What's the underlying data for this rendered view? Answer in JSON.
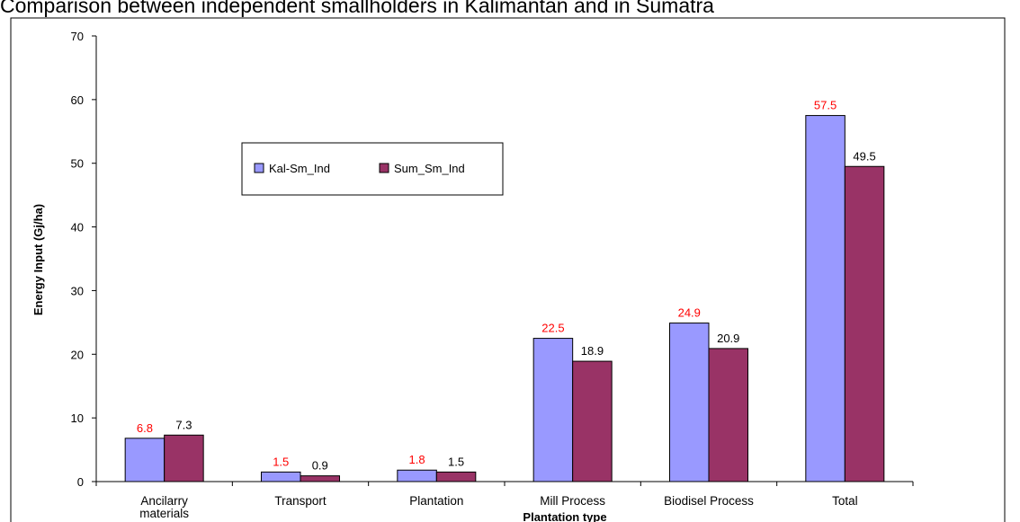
{
  "chart_data": {
    "type": "bar",
    "title": "Comparison between independent smallholders in Kalimantan and in Sumatra",
    "xlabel": "Plantation type",
    "ylabel": "Energy Input (Gj/ha)",
    "ylim": [
      0,
      70
    ],
    "yticks": [
      0,
      10,
      20,
      30,
      40,
      50,
      60,
      70
    ],
    "grid": false,
    "legend_position": "upper-left",
    "categories": [
      [
        "Ancilarry",
        "materials"
      ],
      [
        "Transport"
      ],
      [
        "Plantation"
      ],
      [
        "Mill Process"
      ],
      [
        "Biodisel Process"
      ],
      [
        "Total"
      ]
    ],
    "series": [
      {
        "name": "Kal-Sm_Ind",
        "color": "#9999ff",
        "label_color": "#ff0000",
        "values": [
          6.8,
          1.5,
          1.8,
          22.5,
          24.9,
          57.5
        ]
      },
      {
        "name": "Sum_Sm_Ind",
        "color": "#993366",
        "label_color": "#000000",
        "values": [
          7.3,
          0.9,
          1.5,
          18.9,
          20.9,
          49.5
        ]
      }
    ]
  }
}
